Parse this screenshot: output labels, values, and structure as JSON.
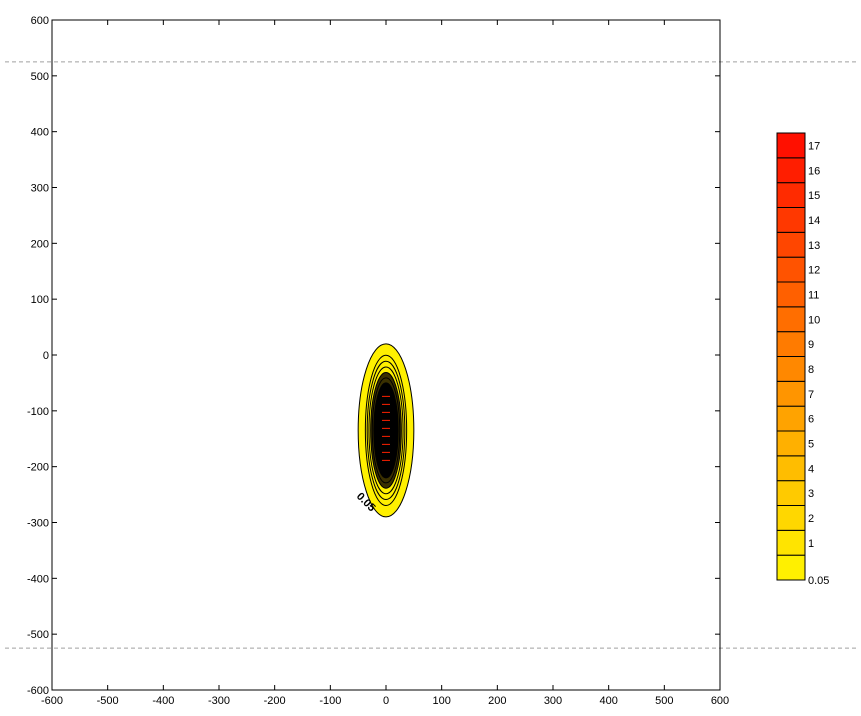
{
  "chart_data": {
    "type": "contour",
    "title": "",
    "xlabel": "",
    "ylabel": "",
    "xlim": [
      -600,
      600
    ],
    "ylim": [
      -600,
      600
    ],
    "x_ticks": [
      "-600",
      "-500",
      "-400",
      "-300",
      "-200",
      "-100",
      "0",
      "100",
      "200",
      "300",
      "400",
      "500",
      "600"
    ],
    "y_ticks": [
      "600",
      "500",
      "400",
      "300",
      "200",
      "100",
      "0",
      "-100",
      "-200",
      "-300",
      "-400",
      "-500",
      "-600"
    ],
    "x_tick_values": [
      -600,
      -500,
      -400,
      -300,
      -200,
      -100,
      0,
      100,
      200,
      300,
      400,
      500,
      600
    ],
    "y_tick_values": [
      600,
      500,
      400,
      300,
      200,
      100,
      0,
      -100,
      -200,
      -300,
      -400,
      -500,
      -600
    ],
    "reference_lines": [
      {
        "orientation": "horizontal",
        "y": 525,
        "style": "dashed",
        "color": "#a0a0a0"
      },
      {
        "orientation": "horizontal",
        "y": -525,
        "style": "dashed",
        "color": "#a0a0a0"
      }
    ],
    "contour_center": {
      "x": 0,
      "y": -135
    },
    "contour_outer_extent": {
      "x": [
        -50,
        50
      ],
      "y": [
        -290,
        20
      ]
    },
    "contour_label": "0.05",
    "legend": {
      "placement": "right",
      "levels": [
        "0.05",
        "1",
        "2",
        "3",
        "4",
        "5",
        "6",
        "7",
        "8",
        "9",
        "10",
        "11",
        "12",
        "13",
        "14",
        "15",
        "16",
        "17"
      ],
      "colors": [
        "#FFF000",
        "#FFE400",
        "#FFD700",
        "#FFCA00",
        "#FFBD00",
        "#FFB000",
        "#FFA300",
        "#FF9500",
        "#FF8800",
        "#FF7B00",
        "#FF6E00",
        "#FF6000",
        "#FF5300",
        "#FF4600",
        "#FF3800",
        "#FF2B00",
        "#FF1E00",
        "#FF1000"
      ]
    },
    "colors": {
      "outer_fill": "#FFF000",
      "core_fill": "#000000",
      "core_line": "#FF2000"
    }
  }
}
